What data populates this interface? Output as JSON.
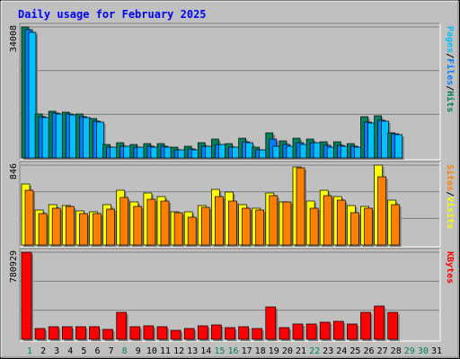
{
  "chart_data": {
    "type": "bar",
    "title": "Daily usage for February 2025",
    "categories": [
      "1",
      "2",
      "3",
      "4",
      "5",
      "6",
      "7",
      "8",
      "9",
      "10",
      "11",
      "12",
      "13",
      "14",
      "15",
      "16",
      "17",
      "18",
      "19",
      "20",
      "21",
      "22",
      "23",
      "24",
      "25",
      "26",
      "27",
      "28",
      "29",
      "30",
      "31"
    ],
    "weekend_days": [
      "1",
      "8",
      "15",
      "16",
      "22",
      "29",
      "30"
    ],
    "colors": {
      "background": "#c0c0c0",
      "title": "#0000ff",
      "axis_text": "#000000",
      "weekend_text": "#00805c",
      "grid": "#808080",
      "hits": "#00805c",
      "files": "#0080ff",
      "pages": "#00c0ff",
      "visits": "#ffff00",
      "sites": "#ff8000",
      "kbytes": "#ff0000"
    },
    "panels": [
      {
        "name": "hits-files-pages",
        "max_label": "34008",
        "ylim": [
          0,
          34008
        ],
        "side_labels": [
          {
            "text": "Pages",
            "color": "#00c0ff"
          },
          {
            "text": "Files",
            "color": "#0080ff"
          },
          {
            "text": "Hits",
            "color": "#00805c"
          }
        ],
        "series": [
          {
            "name": "Hits",
            "color": "#00805c",
            "values": [
              34008,
              11400,
              12100,
              11800,
              11400,
              10200,
              3600,
              3900,
              3600,
              3700,
              3800,
              2700,
              3000,
              4000,
              4800,
              3800,
              5100,
              2800,
              6500,
              4400,
              5100,
              4900,
              4100,
              4300,
              3800,
              10600,
              11000,
              6500,
              0,
              0,
              0
            ]
          },
          {
            "name": "Files",
            "color": "#0080ff",
            "values": [
              33200,
              10700,
              11700,
              11300,
              10700,
              9500,
              2800,
              3100,
              2900,
              3000,
              3100,
              2100,
              2300,
              3100,
              3600,
              2900,
              4100,
              2100,
              4800,
              3400,
              4000,
              4000,
              3200,
              3300,
              3000,
              9300,
              9800,
              6200,
              0,
              0,
              0
            ]
          },
          {
            "name": "Pages",
            "color": "#00c0ff",
            "values": [
              32500,
              10500,
              11500,
              11100,
              10400,
              9300,
              2700,
              3000,
              2800,
              2900,
              2900,
              2000,
              2200,
              3000,
              3500,
              2800,
              4000,
              2000,
              3100,
              3000,
              3400,
              3900,
              2900,
              3100,
              2700,
              9100,
              9500,
              6000,
              0,
              0,
              0
            ]
          }
        ]
      },
      {
        "name": "visits-sites",
        "max_label": "846",
        "ylim": [
          0,
          846
        ],
        "side_labels": [
          {
            "text": "Sites",
            "color": "#ff8000"
          },
          {
            "text": "Visits",
            "color": "#ffff00"
          }
        ],
        "series": [
          {
            "name": "Visits",
            "color": "#ffff00",
            "values": [
              650,
              375,
              430,
              420,
              360,
              355,
              425,
              580,
              460,
              555,
              510,
              355,
              350,
              420,
              590,
              560,
              425,
              390,
              555,
              460,
              830,
              465,
              580,
              510,
              415,
              410,
              846,
              475,
              0,
              0,
              0
            ]
          },
          {
            "name": "Sites",
            "color": "#ff8000",
            "values": [
              580,
              330,
              390,
              410,
              335,
              330,
              380,
              505,
              405,
              485,
              465,
              340,
              290,
              395,
              510,
              470,
              390,
              370,
              520,
              455,
              815,
              385,
              525,
              475,
              340,
              390,
              725,
              425,
              0,
              0,
              0
            ]
          }
        ]
      },
      {
        "name": "kbytes",
        "max_label": "780929",
        "ylim": [
          0,
          780929
        ],
        "side_labels": [
          {
            "text": "KBytes",
            "color": "#ff0000"
          }
        ],
        "series": [
          {
            "name": "KBytes",
            "color": "#ff0000",
            "values": [
              780929,
              94000,
              115000,
              114000,
              113000,
              114000,
              90000,
              240000,
              113000,
              117000,
              112000,
              78000,
              95000,
              120000,
              130000,
              103000,
              110000,
              93000,
              290000,
              103000,
              135000,
              133000,
              153000,
              160000,
              140000,
              245000,
              295000,
              240000,
              0,
              0,
              0
            ]
          }
        ]
      }
    ]
  }
}
